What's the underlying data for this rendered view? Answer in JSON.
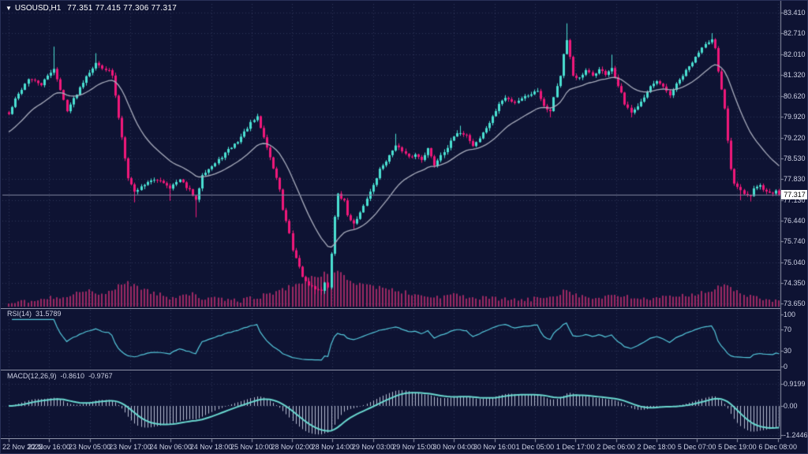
{
  "header": {
    "symbol": "USOUSD,H1",
    "ohlc": "77.351 77.415 77.306 77.317"
  },
  "price_axis": {
    "current": "77.317",
    "ticks": [
      "83.410",
      "82.710",
      "82.010",
      "81.320",
      "80.620",
      "79.920",
      "79.220",
      "78.530",
      "77.830",
      "77.130",
      "76.440",
      "75.740",
      "75.040",
      "74.350",
      "73.650"
    ]
  },
  "panels": {
    "rsi": {
      "title": "RSI(14)",
      "value": "31.5789",
      "axis": [
        "100",
        "70",
        "30",
        "0"
      ],
      "axis_values": [
        100,
        70,
        30,
        0
      ]
    },
    "macd": {
      "title": "MACD(12,26,9)",
      "main": "-0.8610",
      "signal": "-0.9767",
      "axis": [
        "0.9199",
        "0.00",
        "-1.2446"
      ],
      "axis_values": [
        0.9199,
        0.0,
        -1.2446
      ]
    }
  },
  "colors": {
    "background": "#0e1333",
    "grid": "#2e3559",
    "bull": "#4ae0d2",
    "bear": "#f0187a",
    "volume": "#9c2963",
    "ma_line": "#a9adbd",
    "rsi_line": "#55c8dc",
    "macd_signal": "#6ad8d0",
    "macd_hist": "#b9bfd4",
    "axis_text": "#cdd1e4",
    "separator": "#8e93a8",
    "price_line": "#7e849e"
  },
  "chart_data": {
    "type": "candlestick",
    "symbol": "USOUSD",
    "timeframe": "H1",
    "title": "USOUSD,H1",
    "last_bar": {
      "open": 77.351,
      "high": 77.415,
      "low": 77.306,
      "close": 77.317
    },
    "price_axis_range": {
      "top_tick": 83.41,
      "bottom_tick": 73.65,
      "tick_step": 0.7
    },
    "indicators": [
      {
        "name": "Moving Average",
        "drawn_as": "line"
      },
      {
        "name": "Volume",
        "drawn_as": "histogram"
      },
      {
        "name": "RSI",
        "period": 14,
        "current": 31.5789,
        "range": [
          0,
          100
        ],
        "levels": [
          70,
          30
        ]
      },
      {
        "name": "MACD",
        "params": [
          12,
          26,
          9
        ],
        "main_current": -0.861,
        "signal_current": -0.9767,
        "range": [
          -1.2446,
          0.9199
        ]
      }
    ],
    "bars_total": 240,
    "time_ticks": [
      "22 Nov 2022",
      "22 Nov 16:00",
      "23 Nov 05:00",
      "23 Nov 17:00",
      "24 Nov 06:00",
      "24 Nov 18:00",
      "25 Nov 10:00",
      "28 Nov 02:00",
      "28 Nov 14:00",
      "29 Nov 03:00",
      "29 Nov 15:00",
      "30 Nov 04:00",
      "30 Nov 16:00",
      "1 Dec 05:00",
      "1 Dec 17:00",
      "2 Dec 06:00",
      "2 Dec 18:00",
      "5 Dec 07:00",
      "5 Dec 19:00",
      "6 Dec 08:00"
    ],
    "close_anchors": [
      [
        0,
        80.0
      ],
      [
        2,
        80.5
      ],
      [
        6,
        81.2
      ],
      [
        10,
        81.0
      ],
      [
        14,
        81.55
      ],
      [
        16,
        80.8
      ],
      [
        18,
        80.15
      ],
      [
        21,
        80.7
      ],
      [
        24,
        81.3
      ],
      [
        27,
        81.7
      ],
      [
        31,
        81.45
      ],
      [
        32,
        81.3
      ],
      [
        34,
        79.9
      ],
      [
        37,
        77.9
      ],
      [
        39,
        77.4
      ],
      [
        43,
        77.75
      ],
      [
        47,
        77.8
      ],
      [
        50,
        77.55
      ],
      [
        53,
        77.8
      ],
      [
        56,
        77.45
      ],
      [
        58,
        77.1
      ],
      [
        60,
        78.0
      ],
      [
        64,
        78.35
      ],
      [
        67,
        78.7
      ],
      [
        71,
        79.1
      ],
      [
        75,
        79.7
      ],
      [
        77,
        79.9
      ],
      [
        78,
        79.55
      ],
      [
        80,
        78.9
      ],
      [
        82,
        78.2
      ],
      [
        84,
        77.5
      ],
      [
        85,
        76.8
      ],
      [
        87,
        76.0
      ],
      [
        88,
        75.4
      ],
      [
        90,
        74.9
      ],
      [
        91,
        74.55
      ],
      [
        93,
        74.3
      ],
      [
        95,
        74.15
      ],
      [
        97,
        74.05
      ],
      [
        98,
        74.4
      ],
      [
        99,
        74.2
      ],
      [
        100,
        75.3
      ],
      [
        101,
        76.6
      ],
      [
        102,
        77.3
      ],
      [
        104,
        77.1
      ],
      [
        105,
        76.6
      ],
      [
        107,
        76.35
      ],
      [
        109,
        76.7
      ],
      [
        111,
        77.2
      ],
      [
        113,
        77.6
      ],
      [
        115,
        78.15
      ],
      [
        118,
        78.6
      ],
      [
        120,
        79.0
      ],
      [
        122,
        78.75
      ],
      [
        124,
        78.55
      ],
      [
        126,
        78.65
      ],
      [
        128,
        78.5
      ],
      [
        130,
        78.85
      ],
      [
        132,
        78.3
      ],
      [
        134,
        78.65
      ],
      [
        136,
        78.9
      ],
      [
        138,
        79.25
      ],
      [
        140,
        79.4
      ],
      [
        142,
        79.3
      ],
      [
        144,
        78.95
      ],
      [
        146,
        79.2
      ],
      [
        148,
        79.55
      ],
      [
        150,
        79.9
      ],
      [
        152,
        80.35
      ],
      [
        154,
        80.55
      ],
      [
        157,
        80.4
      ],
      [
        159,
        80.55
      ],
      [
        162,
        80.7
      ],
      [
        164,
        80.8
      ],
      [
        166,
        80.3
      ],
      [
        168,
        80.1
      ],
      [
        169,
        80.6
      ],
      [
        171,
        81.3
      ],
      [
        172,
        82.0
      ],
      [
        173,
        82.45
      ],
      [
        174,
        81.9
      ],
      [
        175,
        81.3
      ],
      [
        177,
        81.2
      ],
      [
        179,
        81.45
      ],
      [
        181,
        81.3
      ],
      [
        183,
        81.5
      ],
      [
        185,
        81.35
      ],
      [
        187,
        81.55
      ],
      [
        188,
        81.2
      ],
      [
        190,
        80.7
      ],
      [
        191,
        80.3
      ],
      [
        193,
        80.1
      ],
      [
        195,
        80.3
      ],
      [
        197,
        80.55
      ],
      [
        199,
        80.9
      ],
      [
        201,
        81.1
      ],
      [
        203,
        80.9
      ],
      [
        205,
        80.65
      ],
      [
        207,
        81.0
      ],
      [
        209,
        81.3
      ],
      [
        211,
        81.6
      ],
      [
        213,
        81.9
      ],
      [
        214,
        82.1
      ],
      [
        216,
        82.4
      ],
      [
        218,
        82.5
      ],
      [
        219,
        82.2
      ],
      [
        220,
        81.4
      ],
      [
        222,
        80.2
      ],
      [
        223,
        79.1
      ],
      [
        224,
        78.2
      ],
      [
        225,
        77.7
      ],
      [
        227,
        77.5
      ],
      [
        228,
        77.35
      ],
      [
        230,
        77.25
      ],
      [
        231,
        77.5
      ],
      [
        233,
        77.6
      ],
      [
        235,
        77.4
      ],
      [
        237,
        77.35
      ],
      [
        238,
        77.45
      ],
      [
        239,
        77.317
      ]
    ],
    "wick_events": [
      [
        14,
        "h",
        82.27
      ],
      [
        27,
        "h",
        82.05
      ],
      [
        39,
        "l",
        77.05
      ],
      [
        50,
        "l",
        77.1
      ],
      [
        58,
        "l",
        76.55
      ],
      [
        77,
        "h",
        80.02
      ],
      [
        95,
        "l",
        73.97
      ],
      [
        97,
        "l",
        73.95
      ],
      [
        107,
        "l",
        76.15
      ],
      [
        120,
        "h",
        79.35
      ],
      [
        140,
        "h",
        79.62
      ],
      [
        168,
        "l",
        79.9
      ],
      [
        173,
        "h",
        83.05
      ],
      [
        187,
        "h",
        82.0
      ],
      [
        193,
        "l",
        79.9
      ],
      [
        218,
        "h",
        82.72
      ],
      [
        227,
        "l",
        77.12
      ],
      [
        230,
        "l",
        77.08
      ]
    ],
    "volume_anchors": [
      [
        0,
        5
      ],
      [
        8,
        7
      ],
      [
        16,
        13
      ],
      [
        24,
        20
      ],
      [
        29,
        15
      ],
      [
        33,
        24
      ],
      [
        36,
        31
      ],
      [
        40,
        26
      ],
      [
        44,
        18
      ],
      [
        50,
        12
      ],
      [
        56,
        17
      ],
      [
        60,
        11
      ],
      [
        66,
        9
      ],
      [
        72,
        8
      ],
      [
        78,
        13
      ],
      [
        84,
        20
      ],
      [
        88,
        27
      ],
      [
        92,
        33
      ],
      [
        96,
        39
      ],
      [
        100,
        46
      ],
      [
        103,
        41
      ],
      [
        107,
        31
      ],
      [
        112,
        27
      ],
      [
        116,
        23
      ],
      [
        120,
        21
      ],
      [
        126,
        15
      ],
      [
        132,
        12
      ],
      [
        138,
        15
      ],
      [
        144,
        11
      ],
      [
        152,
        10
      ],
      [
        160,
        8
      ],
      [
        166,
        12
      ],
      [
        170,
        15
      ],
      [
        173,
        23
      ],
      [
        176,
        15
      ],
      [
        182,
        10
      ],
      [
        188,
        14
      ],
      [
        194,
        11
      ],
      [
        200,
        10
      ],
      [
        206,
        12
      ],
      [
        212,
        16
      ],
      [
        218,
        21
      ],
      [
        222,
        27
      ],
      [
        226,
        19
      ],
      [
        232,
        11
      ],
      [
        239,
        6
      ]
    ]
  }
}
